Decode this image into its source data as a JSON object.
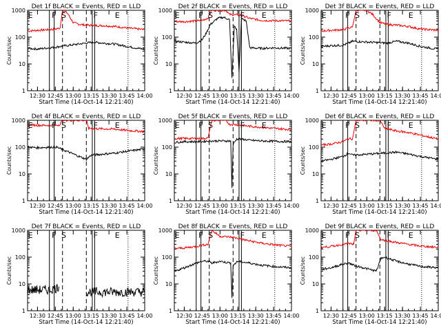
{
  "x_ticks": [
    "12:30",
    "12:45",
    "13:00",
    "13:15",
    "13:30",
    "13:45",
    "14:00"
  ],
  "y_ticks": [
    "1",
    "10",
    "100",
    "1000"
  ],
  "xlabel": "Start Time (14-Oct-14 12:21:40)",
  "ylabel": "Counts/sec",
  "colors": {
    "events": "#000000",
    "lld": "#ee0000"
  },
  "chart_data": [
    {
      "type": "line",
      "title": "Det 1f BLACK = Events, RED = LLD",
      "xlim": [
        "12:21:40",
        "14:00"
      ],
      "ylim": [
        1,
        1000
      ],
      "yscale": "log",
      "markers": [
        {
          "x": "12:22",
          "text": "E"
        },
        {
          "x": "12:42",
          "text": "F"
        },
        {
          "x": "12:50",
          "text": "S"
        },
        {
          "x": "13:17",
          "text": "F"
        },
        {
          "x": "13:35",
          "text": "E"
        }
      ],
      "vlines_solid": [
        "12:40",
        "12:44",
        "13:16",
        "13:18"
      ],
      "vlines_dashed": [
        "12:51",
        "13:11"
      ],
      "series": [
        {
          "role": "lld",
          "x": [
            "12:22",
            "12:30",
            "12:40",
            "12:45",
            "12:49",
            "12:51",
            "12:55",
            "13:00",
            "13:05",
            "13:11",
            "13:17",
            "13:25",
            "13:35",
            "13:45",
            "14:00"
          ],
          "values": [
            170,
            180,
            190,
            200,
            220,
            1000,
            800,
            350,
            300,
            280,
            270,
            270,
            250,
            220,
            190
          ]
        },
        {
          "role": "events",
          "x": [
            "12:22",
            "12:30",
            "12:40",
            "12:45",
            "12:49",
            "13:17",
            "13:25",
            "13:35",
            "13:45",
            "14:00"
          ],
          "values": [
            38,
            36,
            40,
            42,
            45,
            65,
            60,
            55,
            45,
            35
          ]
        }
      ]
    },
    {
      "type": "line",
      "title": "Det 2f BLACK = Events, RED = LLD",
      "xlim": [
        "12:21:40",
        "14:00"
      ],
      "ylim": [
        1,
        1000
      ],
      "yscale": "log",
      "markers": [
        {
          "x": "12:22",
          "text": "E"
        },
        {
          "x": "12:42",
          "text": "F"
        },
        {
          "x": "12:50",
          "text": "S"
        },
        {
          "x": "13:17",
          "text": "F"
        },
        {
          "x": "13:35",
          "text": "E"
        }
      ],
      "vlines_solid": [
        "12:40",
        "12:44",
        "13:16",
        "13:18"
      ],
      "vlines_dashed": [
        "12:51",
        "13:11"
      ],
      "series": [
        {
          "role": "lld",
          "x": [
            "12:22",
            "12:30",
            "12:40",
            "12:45",
            "12:50",
            "12:53",
            "13:00",
            "13:05",
            "13:08",
            "13:13",
            "13:18",
            "13:25",
            "13:35",
            "13:45",
            "14:00"
          ],
          "values": [
            380,
            380,
            400,
            420,
            520,
            1000,
            1000,
            1000,
            700,
            680,
            650,
            500,
            420,
            410,
            400
          ]
        },
        {
          "role": "events",
          "x": [
            "12:22",
            "12:30",
            "12:40",
            "12:45",
            "12:48",
            "12:52",
            "12:58",
            "13:03",
            "13:08",
            "13:10",
            "13:12",
            "13:14",
            "13:16",
            "13:18",
            "13:22",
            "13:25",
            "13:35",
            "13:45",
            "14:00"
          ],
          "values": [
            70,
            65,
            60,
            80,
            130,
            300,
            500,
            550,
            450,
            3,
            250,
            200,
            5,
            500,
            400,
            40,
            38,
            40,
            38
          ]
        }
      ]
    },
    {
      "type": "line",
      "title": "Det 3f BLACK = Events, RED = LLD",
      "xlim": [
        "12:21:40",
        "14:00"
      ],
      "ylim": [
        1,
        1000
      ],
      "yscale": "log",
      "markers": [
        {
          "x": "12:22",
          "text": "E"
        },
        {
          "x": "12:42",
          "text": "F"
        },
        {
          "x": "12:50",
          "text": "S"
        },
        {
          "x": "13:17",
          "text": "F"
        },
        {
          "x": "13:35",
          "text": "E"
        }
      ],
      "vlines_solid": [
        "12:40",
        "12:44",
        "13:16",
        "13:18"
      ],
      "vlines_dashed": [
        "12:51",
        "13:11"
      ],
      "series": [
        {
          "role": "lld",
          "x": [
            "12:22",
            "12:30",
            "12:40",
            "12:45",
            "12:48",
            "12:51",
            "13:00",
            "13:05",
            "13:11",
            "13:17",
            "13:25",
            "13:35",
            "13:45",
            "14:00"
          ],
          "values": [
            170,
            180,
            190,
            220,
            240,
            1000,
            1000,
            700,
            350,
            300,
            280,
            250,
            200,
            180
          ]
        },
        {
          "role": "events",
          "x": [
            "12:22",
            "12:30",
            "12:40",
            "12:45",
            "12:48",
            "13:17",
            "13:25",
            "13:35",
            "13:45",
            "14:00"
          ],
          "values": [
            45,
            48,
            50,
            60,
            70,
            60,
            70,
            60,
            45,
            35
          ]
        }
      ]
    },
    {
      "type": "line",
      "title": "Det 4f BLACK = Events, RED = LLD",
      "xlim": [
        "12:21:40",
        "14:00"
      ],
      "ylim": [
        1,
        1000
      ],
      "yscale": "log",
      "markers": [
        {
          "x": "12:22",
          "text": "E"
        },
        {
          "x": "12:42",
          "text": "F"
        },
        {
          "x": "12:50",
          "text": "S"
        },
        {
          "x": "13:17",
          "text": "F"
        },
        {
          "x": "13:35",
          "text": "E"
        }
      ],
      "vlines_solid": [
        "12:40",
        "12:44",
        "13:16",
        "13:18"
      ],
      "vlines_dashed": [
        "12:51",
        "13:11"
      ],
      "series": [
        {
          "role": "lld",
          "x": [
            "12:22",
            "12:30",
            "12:40",
            "12:46",
            "12:49",
            "12:51",
            "13:00",
            "13:11",
            "13:13",
            "13:25",
            "13:35",
            "13:45",
            "14:00"
          ],
          "values": [
            700,
            650,
            650,
            650,
            700,
            1000,
            1000,
            1000,
            500,
            480,
            470,
            420,
            380
          ]
        },
        {
          "role": "events",
          "x": [
            "12:22",
            "12:30",
            "12:40",
            "12:46",
            "13:11",
            "13:15",
            "13:25",
            "13:35",
            "13:45",
            "14:00"
          ],
          "values": [
            100,
            95,
            100,
            100,
            35,
            50,
            55,
            60,
            70,
            85
          ]
        }
      ]
    },
    {
      "type": "line",
      "title": "Det 5f BLACK = Events, RED = LLD",
      "xlim": [
        "12:21:40",
        "14:00"
      ],
      "ylim": [
        1,
        1000
      ],
      "yscale": "log",
      "markers": [
        {
          "x": "12:22",
          "text": "E"
        },
        {
          "x": "12:42",
          "text": "F"
        },
        {
          "x": "12:50",
          "text": "S"
        },
        {
          "x": "13:17",
          "text": "F"
        },
        {
          "x": "13:35",
          "text": "E"
        }
      ],
      "vlines_solid": [
        "12:40",
        "12:44",
        "13:16",
        "13:18"
      ],
      "vlines_dashed": [
        "12:51",
        "13:11"
      ],
      "series": [
        {
          "role": "lld",
          "x": [
            "12:22",
            "12:30",
            "12:40",
            "12:45",
            "12:50",
            "12:53",
            "13:05",
            "13:08",
            "13:12",
            "13:18",
            "13:25",
            "13:35",
            "13:45",
            "14:00"
          ],
          "values": [
            210,
            210,
            210,
            210,
            220,
            1000,
            1000,
            700,
            700,
            650,
            600,
            550,
            500,
            450
          ]
        },
        {
          "role": "events",
          "x": [
            "12:22",
            "12:30",
            "12:40",
            "12:45",
            "12:50",
            "13:09",
            "13:10",
            "13:11",
            "13:12",
            "13:14",
            "13:18",
            "13:25",
            "13:35",
            "13:45",
            "14:00"
          ],
          "values": [
            150,
            160,
            160,
            160,
            170,
            170,
            3,
            120,
            150,
            200,
            200,
            180,
            170,
            165,
            160
          ]
        }
      ]
    },
    {
      "type": "line",
      "title": "Det 6f BLACK = Events, RED = LLD",
      "xlim": [
        "12:21:40",
        "14:00"
      ],
      "ylim": [
        1,
        1000
      ],
      "yscale": "log",
      "markers": [
        {
          "x": "12:22",
          "text": "E"
        },
        {
          "x": "12:42",
          "text": "F"
        },
        {
          "x": "12:50",
          "text": "S"
        },
        {
          "x": "13:17",
          "text": "F"
        },
        {
          "x": "13:35",
          "text": "E"
        }
      ],
      "vlines_solid": [
        "12:40",
        "12:44",
        "13:16",
        "13:18"
      ],
      "vlines_dashed": [
        "12:51",
        "13:11"
      ],
      "series": [
        {
          "role": "lld",
          "x": [
            "12:22",
            "12:30",
            "12:40",
            "12:45",
            "12:48",
            "12:51",
            "13:00",
            "13:11",
            "13:15",
            "13:25",
            "13:35",
            "13:45",
            "14:00"
          ],
          "values": [
            120,
            130,
            160,
            210,
            200,
            1000,
            1000,
            1000,
            500,
            400,
            350,
            280,
            200
          ]
        },
        {
          "role": "events",
          "x": [
            "12:22",
            "12:30",
            "12:40",
            "12:45",
            "12:48",
            "13:15",
            "13:25",
            "13:35",
            "13:45",
            "14:00"
          ],
          "values": [
            30,
            35,
            45,
            60,
            50,
            60,
            65,
            55,
            45,
            35
          ]
        }
      ]
    },
    {
      "type": "line",
      "title": "Det 7f BLACK = Events, RED = LLD",
      "xlim": [
        "12:21:40",
        "14:00"
      ],
      "ylim": [
        1,
        1000
      ],
      "yscale": "log",
      "markers": [
        {
          "x": "12:22",
          "text": "E"
        },
        {
          "x": "12:42",
          "text": "F"
        },
        {
          "x": "12:50",
          "text": "S"
        },
        {
          "x": "13:17",
          "text": "F"
        },
        {
          "x": "13:35",
          "text": "E"
        }
      ],
      "vlines_solid": [
        "12:40",
        "12:44",
        "13:16",
        "13:18"
      ],
      "vlines_dashed": [
        "12:51",
        "13:11"
      ],
      "series": [
        {
          "role": "events",
          "x": [
            "12:22",
            "12:30",
            "12:40",
            "12:46",
            "12:48"
          ],
          "values": [
            6,
            6,
            6,
            7,
            8
          ]
        },
        {
          "role": "events",
          "x": [
            "13:11",
            "13:25",
            "13:45",
            "14:00"
          ],
          "values": [
            5,
            5,
            5,
            5
          ]
        }
      ]
    },
    {
      "type": "line",
      "title": "Det 8f BLACK = Events, RED = LLD",
      "xlim": [
        "12:21:40",
        "14:00"
      ],
      "ylim": [
        1,
        1000
      ],
      "yscale": "log",
      "markers": [
        {
          "x": "12:22",
          "text": "E"
        },
        {
          "x": "12:42",
          "text": "F"
        },
        {
          "x": "12:50",
          "text": "S"
        },
        {
          "x": "13:17",
          "text": "F"
        },
        {
          "x": "13:35",
          "text": "E"
        }
      ],
      "vlines_solid": [
        "12:40",
        "12:44",
        "13:16",
        "13:18"
      ],
      "vlines_dashed": [
        "12:51",
        "13:11"
      ],
      "series": [
        {
          "role": "lld",
          "x": [
            "12:22",
            "12:30",
            "12:40",
            "12:45",
            "12:50",
            "12:53",
            "13:00",
            "13:11",
            "13:15",
            "13:25",
            "13:35",
            "13:45",
            "14:00"
          ],
          "values": [
            210,
            220,
            250,
            280,
            300,
            1000,
            600,
            550,
            500,
            400,
            330,
            290,
            250
          ]
        },
        {
          "role": "events",
          "x": [
            "12:22",
            "12:30",
            "12:40",
            "12:45",
            "12:50",
            "12:53",
            "13:00",
            "13:09",
            "13:10",
            "13:11",
            "13:15",
            "13:25",
            "13:35",
            "13:45",
            "14:00"
          ],
          "values": [
            30,
            40,
            60,
            70,
            70,
            60,
            70,
            60,
            3,
            50,
            70,
            60,
            50,
            45,
            40
          ]
        }
      ]
    },
    {
      "type": "line",
      "title": "Det 9f BLACK = Events, RED = LLD",
      "xlim": [
        "12:21:40",
        "14:00"
      ],
      "ylim": [
        1,
        1000
      ],
      "yscale": "log",
      "markers": [
        {
          "x": "12:22",
          "text": "E"
        },
        {
          "x": "12:42",
          "text": "F"
        },
        {
          "x": "12:50",
          "text": "S"
        },
        {
          "x": "13:17",
          "text": "F"
        },
        {
          "x": "13:35",
          "text": "E"
        }
      ],
      "vlines_solid": [
        "12:40",
        "12:44",
        "13:16",
        "13:18"
      ],
      "vlines_dashed": [
        "12:51",
        "13:11"
      ],
      "series": [
        {
          "role": "lld",
          "x": [
            "12:22",
            "12:30",
            "12:40",
            "12:45",
            "12:49",
            "12:51",
            "13:00",
            "13:08",
            "13:12",
            "13:25",
            "13:35",
            "13:45",
            "14:00"
          ],
          "values": [
            230,
            250,
            300,
            320,
            300,
            1000,
            1000,
            1000,
            450,
            350,
            300,
            260,
            230
          ]
        },
        {
          "role": "events",
          "x": [
            "12:22",
            "12:30",
            "12:40",
            "12:45",
            "12:49",
            "13:08",
            "13:12",
            "13:15",
            "13:25",
            "13:35",
            "13:45",
            "14:00"
          ],
          "values": [
            35,
            40,
            55,
            60,
            50,
            30,
            90,
            100,
            70,
            55,
            45,
            40
          ]
        }
      ]
    }
  ]
}
